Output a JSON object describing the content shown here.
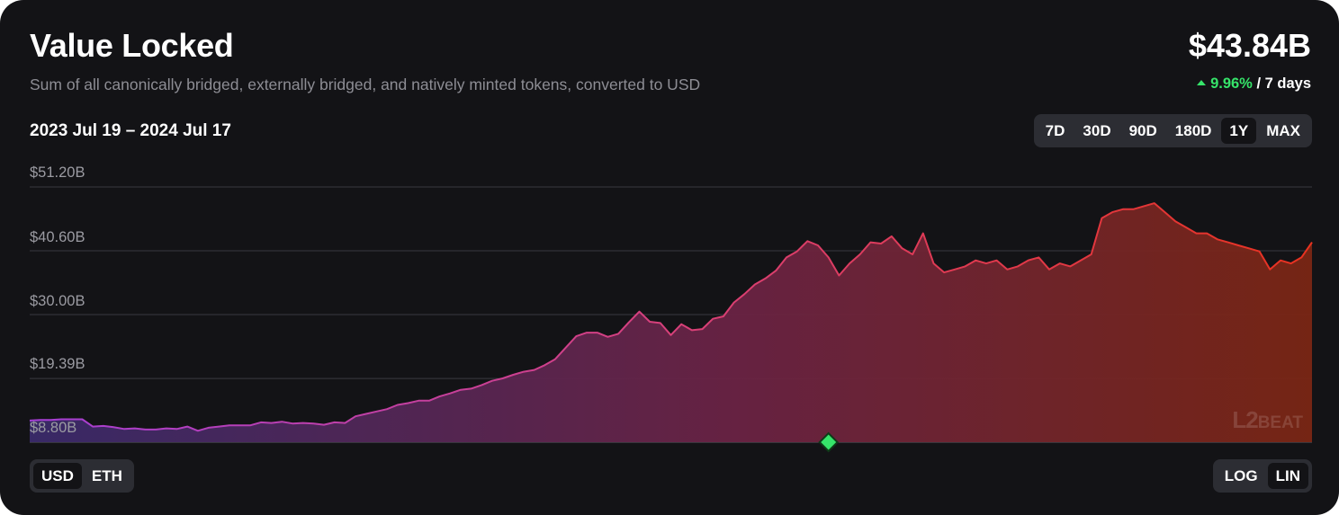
{
  "header": {
    "title": "Value Locked",
    "subtitle": "Sum of all canonically bridged, externally bridged, and natively minted tokens, converted to USD",
    "value": "$43.84B",
    "change_pct": "9.96%",
    "change_period": "/ 7 days",
    "date_range": "2023 Jul 19 – 2024 Jul 17"
  },
  "range_buttons": [
    {
      "label": "7D",
      "active": false
    },
    {
      "label": "30D",
      "active": false
    },
    {
      "label": "90D",
      "active": false
    },
    {
      "label": "180D",
      "active": false
    },
    {
      "label": "1Y",
      "active": true
    },
    {
      "label": "MAX",
      "active": false
    }
  ],
  "unit_buttons": [
    {
      "label": "USD",
      "active": true
    },
    {
      "label": "ETH",
      "active": false
    }
  ],
  "scale_buttons": [
    {
      "label": "LOG",
      "active": false
    },
    {
      "label": "LIN",
      "active": true
    }
  ],
  "watermark": {
    "prefix": "L2",
    "suffix": "BEAT"
  },
  "colors": {
    "background": "#131316",
    "positive": "#36e46a",
    "gradient_start": "#a63fd6",
    "gradient_end": "#e8321f",
    "marker": "#36e46a"
  },
  "chart_data": {
    "type": "area",
    "y_tick_labels": [
      "$51.20B",
      "$40.60B",
      "$30.00B",
      "$19.39B",
      "$8.80B"
    ],
    "y_ticks": [
      51.2,
      40.6,
      30.0,
      19.39,
      8.8
    ],
    "ylim": [
      8.8,
      51.2
    ],
    "x_start": "2023-07-19",
    "x_end": "2024-07-17",
    "scale": "linear",
    "grid": true,
    "series": [
      {
        "values_billion_usd": [
          12.4,
          12.5,
          12.5,
          12.6,
          12.6,
          12.6,
          11.4,
          11.5,
          11.3,
          11.0,
          11.1,
          10.9,
          10.9,
          11.1,
          11.0,
          11.4,
          10.7,
          11.2,
          11.4,
          11.6,
          11.6,
          11.6,
          12.1,
          12.0,
          12.2,
          11.9,
          12.0,
          11.9,
          11.7,
          12.1,
          12.0,
          13.1,
          13.5,
          13.9,
          14.3,
          15.0,
          15.3,
          15.7,
          15.7,
          16.4,
          16.9,
          17.5,
          17.7,
          18.3,
          19.0,
          19.4,
          20.0,
          20.5,
          20.8,
          21.6,
          22.6,
          24.5,
          26.4,
          27.0,
          27.0,
          26.3,
          26.8,
          28.7,
          30.5,
          28.8,
          28.6,
          26.6,
          28.4,
          27.4,
          27.6,
          29.3,
          29.7,
          32.0,
          33.4,
          35.0,
          36.0,
          37.3,
          39.5,
          40.5,
          42.2,
          41.5,
          39.5,
          36.5,
          38.5,
          40.0,
          42.0,
          41.8,
          43.0,
          41.0,
          40.0,
          43.5,
          38.5,
          37.0,
          37.5,
          38.0,
          39.0,
          38.5,
          39.0,
          37.5,
          38.0,
          39.0,
          39.5,
          37.5,
          38.5,
          38.0,
          39.0,
          40.0,
          46.0,
          47.0,
          47.5,
          47.5,
          48.0,
          48.5,
          47.0,
          45.5,
          44.5,
          43.5,
          43.5,
          42.5,
          42.0,
          41.5,
          41.0,
          40.5,
          37.5,
          39.0,
          38.5,
          39.5,
          42.0
        ]
      }
    ],
    "marker_index": 76
  }
}
